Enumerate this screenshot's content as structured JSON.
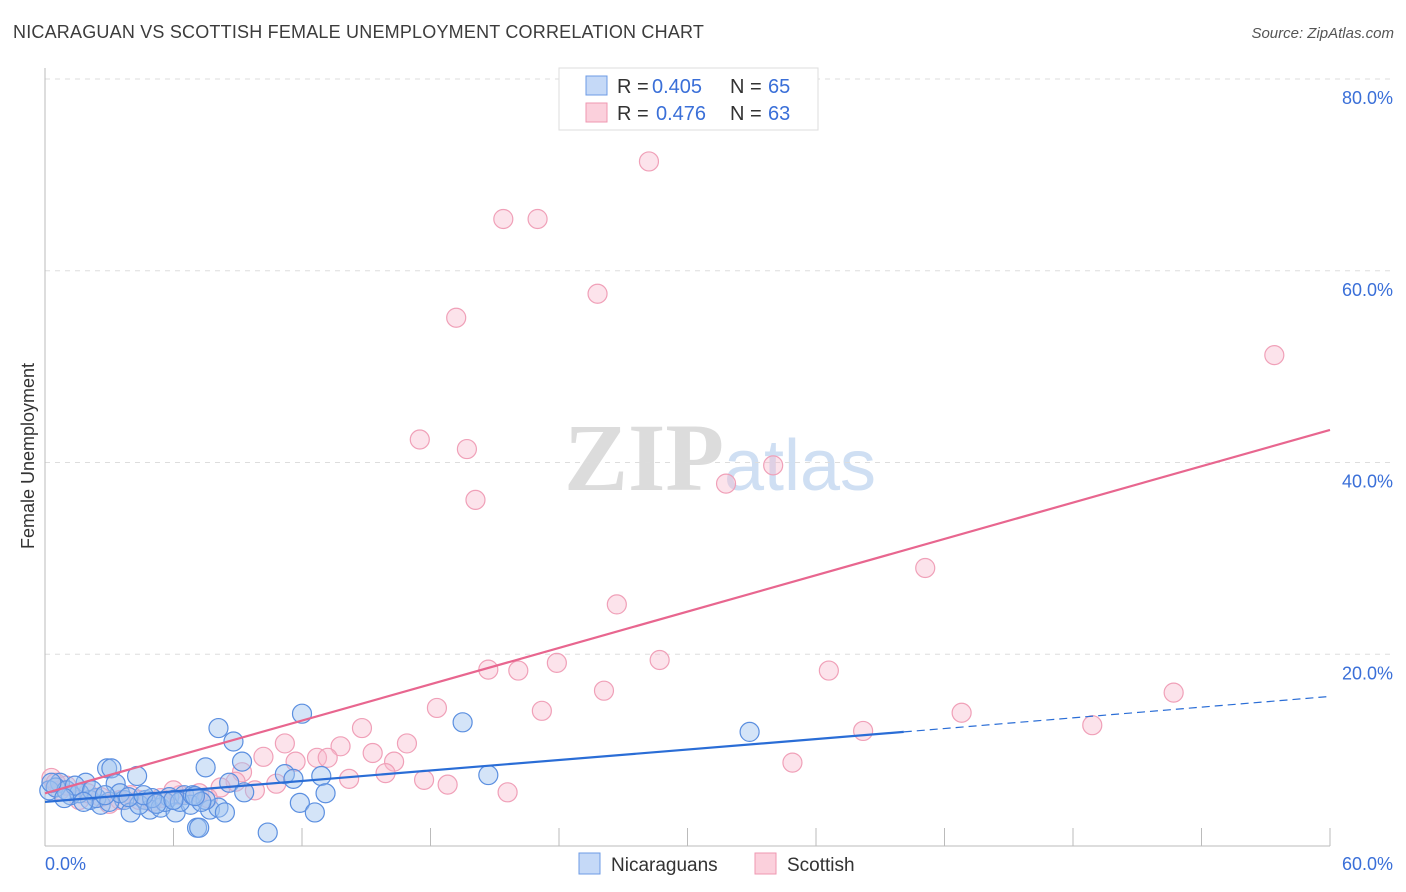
{
  "title": "NICARAGUAN VS SCOTTISH FEMALE UNEMPLOYMENT CORRELATION CHART",
  "source": "Source: ZipAtlas.com",
  "watermark": "ZIPatlas",
  "chart_data": {
    "type": "scatter",
    "ylabel": "Female Unemployment",
    "xlim": [
      0,
      60
    ],
    "ylim": [
      0,
      80
    ],
    "x_tick_labels": [
      "0.0%",
      "60.0%"
    ],
    "y_ticks": [
      20,
      40,
      60,
      80
    ],
    "y_tick_labels": [
      "20.0%",
      "40.0%",
      "60.0%",
      "80.0%"
    ],
    "grid": true,
    "legend": {
      "position": "top-center",
      "entries": [
        {
          "r_label": "R =",
          "r": "0.405",
          "n_label": "N =",
          "n": "65"
        },
        {
          "r_label": "R =",
          "r": "0.476",
          "n_label": "N =",
          "n": "63"
        }
      ]
    },
    "colors": {
      "Nicaraguans": "#5b8fe0",
      "Scottish": "#f08aa8",
      "blue_line": "#2a6dd6",
      "pink_line": "#e8668f"
    },
    "series": [
      {
        "name": "Nicaraguans",
        "trend": {
          "x0": 0,
          "y0": 4.6,
          "x1": 40.1,
          "y1": 11.9,
          "dash_to_x": 60,
          "dash_to_y": 15.6
        },
        "points": [
          [
            12.0,
            13.8
          ],
          [
            19.5,
            12.9
          ],
          [
            8.1,
            12.3
          ],
          [
            32.9,
            11.9
          ],
          [
            8.8,
            10.9
          ],
          [
            9.2,
            8.8
          ],
          [
            7.5,
            8.2
          ],
          [
            2.9,
            8.1
          ],
          [
            3.1,
            8.1
          ],
          [
            4.3,
            7.3
          ],
          [
            20.7,
            7.4
          ],
          [
            12.9,
            7.3
          ],
          [
            11.2,
            7.5
          ],
          [
            11.6,
            7.0
          ],
          [
            8.6,
            6.6
          ],
          [
            3.3,
            6.5
          ],
          [
            1.9,
            6.6
          ],
          [
            0.7,
            6.6
          ],
          [
            9.3,
            5.6
          ],
          [
            13.1,
            5.5
          ],
          [
            11.9,
            4.5
          ],
          [
            12.6,
            3.5
          ],
          [
            7.1,
            1.9
          ],
          [
            7.2,
            1.9
          ],
          [
            10.4,
            1.4
          ],
          [
            0.2,
            5.8
          ],
          [
            1.2,
            5.3
          ],
          [
            2.1,
            4.8
          ],
          [
            2.6,
            4.3
          ],
          [
            3.7,
            4.8
          ],
          [
            4.0,
            3.5
          ],
          [
            4.7,
            4.8
          ],
          [
            4.9,
            3.8
          ],
          [
            5.4,
            4.0
          ],
          [
            5.8,
            5.1
          ],
          [
            6.1,
            3.5
          ],
          [
            6.5,
            5.3
          ],
          [
            6.8,
            4.3
          ],
          [
            7.7,
            3.8
          ],
          [
            8.1,
            4.0
          ],
          [
            8.4,
            3.5
          ],
          [
            7.5,
            4.8
          ],
          [
            5.6,
            4.6
          ],
          [
            0.5,
            6.1
          ],
          [
            1.0,
            5.8
          ],
          [
            1.6,
            5.5
          ],
          [
            2.4,
            5.0
          ],
          [
            3.0,
            4.6
          ],
          [
            3.5,
            5.5
          ],
          [
            4.4,
            4.3
          ],
          [
            5.0,
            5.0
          ],
          [
            6.3,
            4.6
          ],
          [
            6.9,
            5.3
          ],
          [
            7.3,
            4.6
          ],
          [
            1.4,
            6.3
          ],
          [
            2.2,
            5.8
          ],
          [
            2.8,
            5.3
          ],
          [
            0.3,
            6.6
          ],
          [
            0.9,
            5.0
          ],
          [
            1.8,
            4.6
          ],
          [
            3.9,
            5.1
          ],
          [
            4.6,
            5.3
          ],
          [
            5.2,
            4.4
          ],
          [
            6.0,
            4.8
          ],
          [
            7.0,
            5.2
          ]
        ]
      },
      {
        "name": "Scottish",
        "trend": {
          "x0": 0,
          "y0": 5.5,
          "x1": 60,
          "y1": 43.4
        },
        "points": [
          [
            28.2,
            71.4
          ],
          [
            21.4,
            65.4
          ],
          [
            23.0,
            65.4
          ],
          [
            25.8,
            57.6
          ],
          [
            19.2,
            55.1
          ],
          [
            57.4,
            51.2
          ],
          [
            17.5,
            42.4
          ],
          [
            19.7,
            41.4
          ],
          [
            34.0,
            39.7
          ],
          [
            31.8,
            37.8
          ],
          [
            20.1,
            36.1
          ],
          [
            41.1,
            29.0
          ],
          [
            26.7,
            25.2
          ],
          [
            23.9,
            19.1
          ],
          [
            28.7,
            19.4
          ],
          [
            20.7,
            18.4
          ],
          [
            22.1,
            18.3
          ],
          [
            36.6,
            18.3
          ],
          [
            26.1,
            16.2
          ],
          [
            52.7,
            16.0
          ],
          [
            18.3,
            14.4
          ],
          [
            23.2,
            14.1
          ],
          [
            42.8,
            13.9
          ],
          [
            48.9,
            12.6
          ],
          [
            14.8,
            12.3
          ],
          [
            38.2,
            12.0
          ],
          [
            11.2,
            10.7
          ],
          [
            16.9,
            10.7
          ],
          [
            13.8,
            10.4
          ],
          [
            10.2,
            9.3
          ],
          [
            12.7,
            9.2
          ],
          [
            15.3,
            9.7
          ],
          [
            13.2,
            9.2
          ],
          [
            11.7,
            8.8
          ],
          [
            16.3,
            8.8
          ],
          [
            34.9,
            8.7
          ],
          [
            9.2,
            7.7
          ],
          [
            15.9,
            7.6
          ],
          [
            14.2,
            7.0
          ],
          [
            17.7,
            6.9
          ],
          [
            18.8,
            6.4
          ],
          [
            10.8,
            6.5
          ],
          [
            8.9,
            6.7
          ],
          [
            21.6,
            5.6
          ],
          [
            0.3,
            7.1
          ],
          [
            0.7,
            5.8
          ],
          [
            1.6,
            4.8
          ],
          [
            2.6,
            5.1
          ],
          [
            3.5,
            4.8
          ],
          [
            4.4,
            4.8
          ],
          [
            5.4,
            5.0
          ],
          [
            6.3,
            5.3
          ],
          [
            7.2,
            5.5
          ],
          [
            8.2,
            6.1
          ],
          [
            9.8,
            5.8
          ],
          [
            1.0,
            6.3
          ],
          [
            2.0,
            5.5
          ],
          [
            3.0,
            4.4
          ],
          [
            4.0,
            5.3
          ],
          [
            5.0,
            4.6
          ],
          [
            6.0,
            5.8
          ],
          [
            7.6,
            5.0
          ],
          [
            0.5,
            6.6
          ]
        ]
      }
    ]
  },
  "bottom_legend": [
    "Nicaraguans",
    "Scottish"
  ]
}
